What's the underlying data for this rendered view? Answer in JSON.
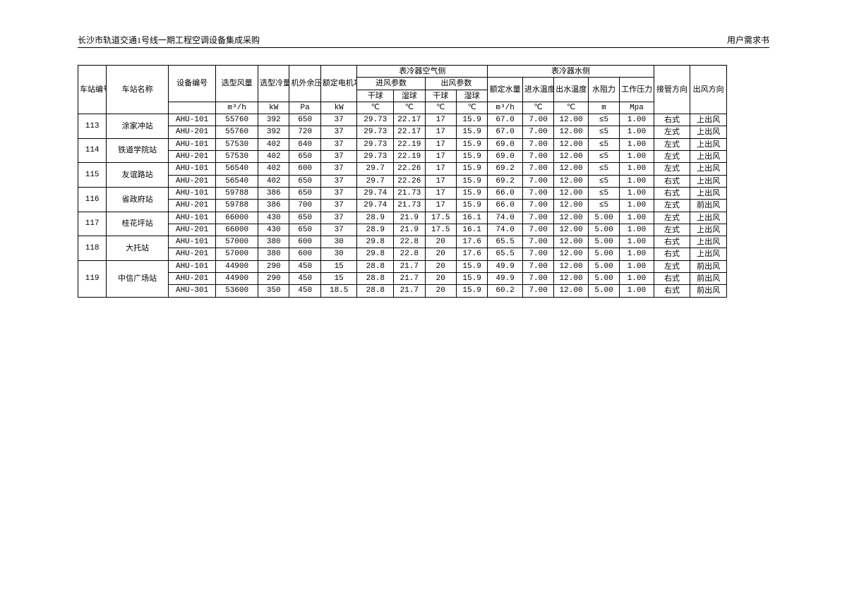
{
  "header": {
    "left": "长沙市轨道交通1号线一期工程空调设备集成采购",
    "right": "用户需求书"
  },
  "colgroup_widths_pct": [
    3.9,
    8.5,
    6.5,
    5.8,
    4.3,
    4.3,
    5.0,
    5.0,
    4.3,
    4.3,
    4.3,
    4.8,
    4.3,
    4.7,
    4.3,
    4.7,
    5.0,
    5.0,
    5.8
  ],
  "thead": {
    "r1": {
      "station_no": "车站编号",
      "station_name": "车站名称",
      "equip_no": "设备编号",
      "airflow": "选型风量",
      "cooling": "选型冷量",
      "ext_press": "机外余压",
      "rated_power": "额定电机功率",
      "air_side": "表冷器空气侧",
      "water_side": "表冷器水侧",
      "pipe_dir": "接管方向",
      "out_dir": "出风方向"
    },
    "r2": {
      "in_air": "进风参数",
      "out_air": "出风参数",
      "rated_water": "额定水量",
      "in_temp": "进水温度",
      "out_temp": "出水温度",
      "water_res": "水阻力",
      "work_press": "工作压力"
    },
    "r3": {
      "dry": "干球",
      "wet": "湿球"
    },
    "units": {
      "airflow": "m³/h",
      "cooling": "kW",
      "ext_press": "Pa",
      "rated_power": "kW",
      "temp": "℃",
      "water": "m³/h",
      "water_res": "m",
      "work_press": "Mpa"
    }
  },
  "stations": [
    {
      "no": "113",
      "name": "涂家冲站",
      "rows": [
        {
          "eq": "AHU-101",
          "af": "55760",
          "cl": "392",
          "ep": "650",
          "rp": "37",
          "id": "29.73",
          "iw": "22.17",
          "od": "17",
          "ow": "15.9",
          "rw": "67.0",
          "it": "7.00",
          "ot": "12.00",
          "wr": "≤5",
          "wp": "1.00",
          "pd": "右式",
          "odir": "上出风"
        },
        {
          "eq": "AHU-201",
          "af": "55760",
          "cl": "392",
          "ep": "720",
          "rp": "37",
          "id": "29.73",
          "iw": "22.17",
          "od": "17",
          "ow": "15.9",
          "rw": "67.0",
          "it": "7.00",
          "ot": "12.00",
          "wr": "≤5",
          "wp": "1.00",
          "pd": "左式",
          "odir": "上出风"
        }
      ]
    },
    {
      "no": "114",
      "name": "铁道学院站",
      "rows": [
        {
          "eq": "AHU-101",
          "af": "57530",
          "cl": "402",
          "ep": "640",
          "rp": "37",
          "id": "29.73",
          "iw": "22.19",
          "od": "17",
          "ow": "15.9",
          "rw": "69.0",
          "it": "7.00",
          "ot": "12.00",
          "wr": "≤5",
          "wp": "1.00",
          "pd": "左式",
          "odir": "上出风"
        },
        {
          "eq": "AHU-201",
          "af": "57530",
          "cl": "402",
          "ep": "650",
          "rp": "37",
          "id": "29.73",
          "iw": "22.19",
          "od": "17",
          "ow": "15.9",
          "rw": "69.0",
          "it": "7.00",
          "ot": "12.00",
          "wr": "≤5",
          "wp": "1.00",
          "pd": "左式",
          "odir": "上出风"
        }
      ]
    },
    {
      "no": "115",
      "name": "友谊路站",
      "rows": [
        {
          "eq": "AHU-101",
          "af": "56540",
          "cl": "402",
          "ep": "600",
          "rp": "37",
          "id": "29.7",
          "iw": "22.26",
          "od": "17",
          "ow": "15.9",
          "rw": "69.2",
          "it": "7.00",
          "ot": "12.00",
          "wr": "≤5",
          "wp": "1.00",
          "pd": "左式",
          "odir": "上出风"
        },
        {
          "eq": "AHU-201",
          "af": "56540",
          "cl": "402",
          "ep": "650",
          "rp": "37",
          "id": "29.7",
          "iw": "22.26",
          "od": "17",
          "ow": "15.9",
          "rw": "69.2",
          "it": "7.00",
          "ot": "12.00",
          "wr": "≤5",
          "wp": "1.00",
          "pd": "右式",
          "odir": "上出风"
        }
      ]
    },
    {
      "no": "116",
      "name": "省政府站",
      "rows": [
        {
          "eq": "AHU-101",
          "af": "59788",
          "cl": "386",
          "ep": "650",
          "rp": "37",
          "id": "29.74",
          "iw": "21.73",
          "od": "17",
          "ow": "15.9",
          "rw": "66.0",
          "it": "7.00",
          "ot": "12.00",
          "wr": "≤5",
          "wp": "1.00",
          "pd": "右式",
          "odir": "上出风"
        },
        {
          "eq": "AHU-201",
          "af": "59788",
          "cl": "386",
          "ep": "700",
          "rp": "37",
          "id": "29.74",
          "iw": "21.73",
          "od": "17",
          "ow": "15.9",
          "rw": "66.0",
          "it": "7.00",
          "ot": "12.00",
          "wr": "≤5",
          "wp": "1.00",
          "pd": "左式",
          "odir": "前出风"
        }
      ]
    },
    {
      "no": "117",
      "name": "桂花坪站",
      "rows": [
        {
          "eq": "AHU-101",
          "af": "66000",
          "cl": "430",
          "ep": "650",
          "rp": "37",
          "id": "28.9",
          "iw": "21.9",
          "od": "17.5",
          "ow": "16.1",
          "rw": "74.0",
          "it": "7.00",
          "ot": "12.00",
          "wr": "5.00",
          "wp": "1.00",
          "pd": "左式",
          "odir": "上出风"
        },
        {
          "eq": "AHU-201",
          "af": "66000",
          "cl": "430",
          "ep": "650",
          "rp": "37",
          "id": "28.9",
          "iw": "21.9",
          "od": "17.5",
          "ow": "16.1",
          "rw": "74.0",
          "it": "7.00",
          "ot": "12.00",
          "wr": "5.00",
          "wp": "1.00",
          "pd": "左式",
          "odir": "上出风"
        }
      ]
    },
    {
      "no": "118",
      "name": "大托站",
      "rows": [
        {
          "eq": "AHU-101",
          "af": "57000",
          "cl": "380",
          "ep": "600",
          "rp": "30",
          "id": "29.8",
          "iw": "22.8",
          "od": "20",
          "ow": "17.6",
          "rw": "65.5",
          "it": "7.00",
          "ot": "12.00",
          "wr": "5.00",
          "wp": "1.00",
          "pd": "右式",
          "odir": "上出风"
        },
        {
          "eq": "AHU-201",
          "af": "57000",
          "cl": "380",
          "ep": "600",
          "rp": "30",
          "id": "29.8",
          "iw": "22.8",
          "od": "20",
          "ow": "17.6",
          "rw": "65.5",
          "it": "7.00",
          "ot": "12.00",
          "wr": "5.00",
          "wp": "1.00",
          "pd": "右式",
          "odir": "上出风"
        }
      ]
    },
    {
      "no": "119",
      "name": "中信广场站",
      "rows": [
        {
          "eq": "AHU-101",
          "af": "44900",
          "cl": "290",
          "ep": "450",
          "rp": "15",
          "id": "28.8",
          "iw": "21.7",
          "od": "20",
          "ow": "15.9",
          "rw": "49.9",
          "it": "7.00",
          "ot": "12.00",
          "wr": "5.00",
          "wp": "1.00",
          "pd": "左式",
          "odir": "前出风"
        },
        {
          "eq": "AHU-201",
          "af": "44900",
          "cl": "290",
          "ep": "450",
          "rp": "15",
          "id": "28.8",
          "iw": "21.7",
          "od": "20",
          "ow": "15.9",
          "rw": "49.9",
          "it": "7.00",
          "ot": "12.00",
          "wr": "5.00",
          "wp": "1.00",
          "pd": "右式",
          "odir": "前出风"
        },
        {
          "eq": "AHU-301",
          "af": "53600",
          "cl": "350",
          "ep": "450",
          "rp": "18.5",
          "id": "28.8",
          "iw": "21.7",
          "od": "20",
          "ow": "15.9",
          "rw": "60.2",
          "it": "7.00",
          "ot": "12.00",
          "wr": "5.00",
          "wp": "1.00",
          "pd": "右式",
          "odir": "前出风"
        }
      ]
    }
  ]
}
